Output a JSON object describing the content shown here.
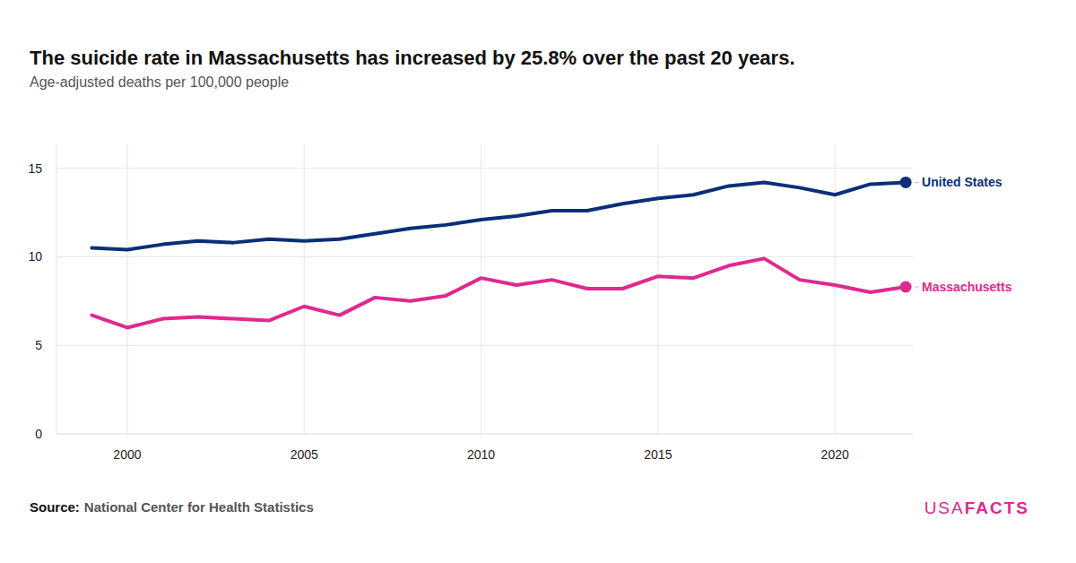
{
  "chart_data": {
    "type": "line",
    "title": "The suicide rate in Massachusetts has increased by 25.8% over the past 20 years.",
    "subtitle": "Age-adjusted deaths per 100,000 people",
    "source_label": "Source:",
    "source": "National Center for Health Statistics",
    "logo": [
      "USA",
      "FACTS"
    ],
    "x": [
      1999,
      2000,
      2001,
      2002,
      2003,
      2004,
      2005,
      2006,
      2007,
      2008,
      2009,
      2010,
      2011,
      2012,
      2013,
      2014,
      2015,
      2016,
      2017,
      2018,
      2019,
      2020,
      2021,
      2022
    ],
    "series": [
      {
        "name": "United States",
        "color": "#0a2f78",
        "marker": "end-dot",
        "values": [
          10.5,
          10.4,
          10.7,
          10.9,
          10.8,
          11.0,
          10.9,
          11.0,
          11.3,
          11.6,
          11.8,
          12.1,
          12.3,
          12.6,
          12.6,
          13.0,
          13.3,
          13.5,
          14.0,
          14.2,
          13.9,
          13.5,
          14.1,
          14.2
        ]
      },
      {
        "name": "Massachusetts",
        "color": "#e0298f",
        "marker": "end-dot",
        "values": [
          6.7,
          6.0,
          6.5,
          6.6,
          6.5,
          6.4,
          7.2,
          6.7,
          7.7,
          7.5,
          7.8,
          8.8,
          8.4,
          8.7,
          8.2,
          8.2,
          8.9,
          8.8,
          9.5,
          9.9,
          8.7,
          8.4,
          8.0,
          8.3
        ]
      }
    ],
    "xlim": [
      1998,
      2022.2
    ],
    "xticks": [
      2000,
      2005,
      2010,
      2015,
      2020
    ],
    "ylim": [
      0,
      16.4
    ],
    "yticks": [
      0,
      5,
      10,
      15
    ],
    "grid": true
  }
}
